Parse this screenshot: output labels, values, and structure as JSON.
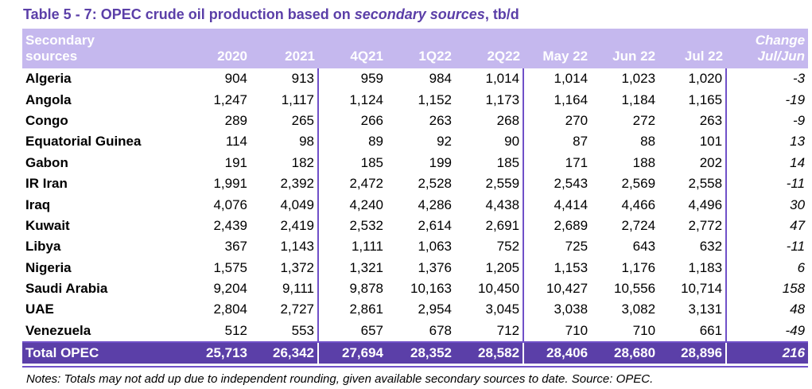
{
  "title": {
    "prefix": "Table 5 - 7: OPEC crude oil production based on ",
    "emphasis": "secondary sources",
    "suffix": ", tb/d"
  },
  "header": {
    "country_line1": "Secondary",
    "country_line2": "sources",
    "columns": [
      "2020",
      "2021",
      "4Q21",
      "1Q22",
      "2Q22",
      "May 22",
      "Jun 22",
      "Jul 22"
    ],
    "change_line1": "Change",
    "change_line2": "Jul/Jun"
  },
  "rows": [
    {
      "country": "Algeria",
      "values": [
        "904",
        "913",
        "959",
        "984",
        "1,014",
        "1,014",
        "1,023",
        "1,020"
      ],
      "change": "-3"
    },
    {
      "country": "Angola",
      "values": [
        "1,247",
        "1,117",
        "1,124",
        "1,152",
        "1,173",
        "1,164",
        "1,184",
        "1,165"
      ],
      "change": "-19"
    },
    {
      "country": "Congo",
      "values": [
        "289",
        "265",
        "266",
        "263",
        "268",
        "270",
        "272",
        "263"
      ],
      "change": "-9"
    },
    {
      "country": "Equatorial Guinea",
      "values": [
        "114",
        "98",
        "89",
        "92",
        "90",
        "87",
        "88",
        "101"
      ],
      "change": "13"
    },
    {
      "country": "Gabon",
      "values": [
        "191",
        "182",
        "185",
        "199",
        "185",
        "171",
        "188",
        "202"
      ],
      "change": "14"
    },
    {
      "country": "IR Iran",
      "values": [
        "1,991",
        "2,392",
        "2,472",
        "2,528",
        "2,559",
        "2,543",
        "2,569",
        "2,558"
      ],
      "change": "-11"
    },
    {
      "country": "Iraq",
      "values": [
        "4,076",
        "4,049",
        "4,240",
        "4,286",
        "4,438",
        "4,414",
        "4,466",
        "4,496"
      ],
      "change": "30"
    },
    {
      "country": "Kuwait",
      "values": [
        "2,439",
        "2,419",
        "2,532",
        "2,614",
        "2,691",
        "2,689",
        "2,724",
        "2,772"
      ],
      "change": "47"
    },
    {
      "country": "Libya",
      "values": [
        "367",
        "1,143",
        "1,111",
        "1,063",
        "752",
        "725",
        "643",
        "632"
      ],
      "change": "-11"
    },
    {
      "country": "Nigeria",
      "values": [
        "1,575",
        "1,372",
        "1,321",
        "1,376",
        "1,205",
        "1,153",
        "1,176",
        "1,183"
      ],
      "change": "6"
    },
    {
      "country": "Saudi Arabia",
      "values": [
        "9,204",
        "9,111",
        "9,878",
        "10,163",
        "10,450",
        "10,427",
        "10,556",
        "10,714"
      ],
      "change": "158"
    },
    {
      "country": "UAE",
      "values": [
        "2,804",
        "2,727",
        "2,861",
        "2,954",
        "3,045",
        "3,038",
        "3,082",
        "3,131"
      ],
      "change": "48"
    },
    {
      "country": "Venezuela",
      "values": [
        "512",
        "553",
        "657",
        "678",
        "712",
        "710",
        "710",
        "661"
      ],
      "change": "-49"
    }
  ],
  "total": {
    "label": "Total  OPEC",
    "values": [
      "25,713",
      "26,342",
      "27,694",
      "28,352",
      "28,582",
      "28,406",
      "28,680",
      "28,896"
    ],
    "change": "216"
  },
  "notes": "Notes: Totals may not add up due to independent rounding, given available secondary sources to date. Source: OPEC.",
  "colors": {
    "title": "#5b3fa8",
    "header_bg": "#c5b8ee",
    "header_num_text": "#6a4fc4",
    "total_bg": "#5b3fa8",
    "separator": "#7050c8"
  }
}
